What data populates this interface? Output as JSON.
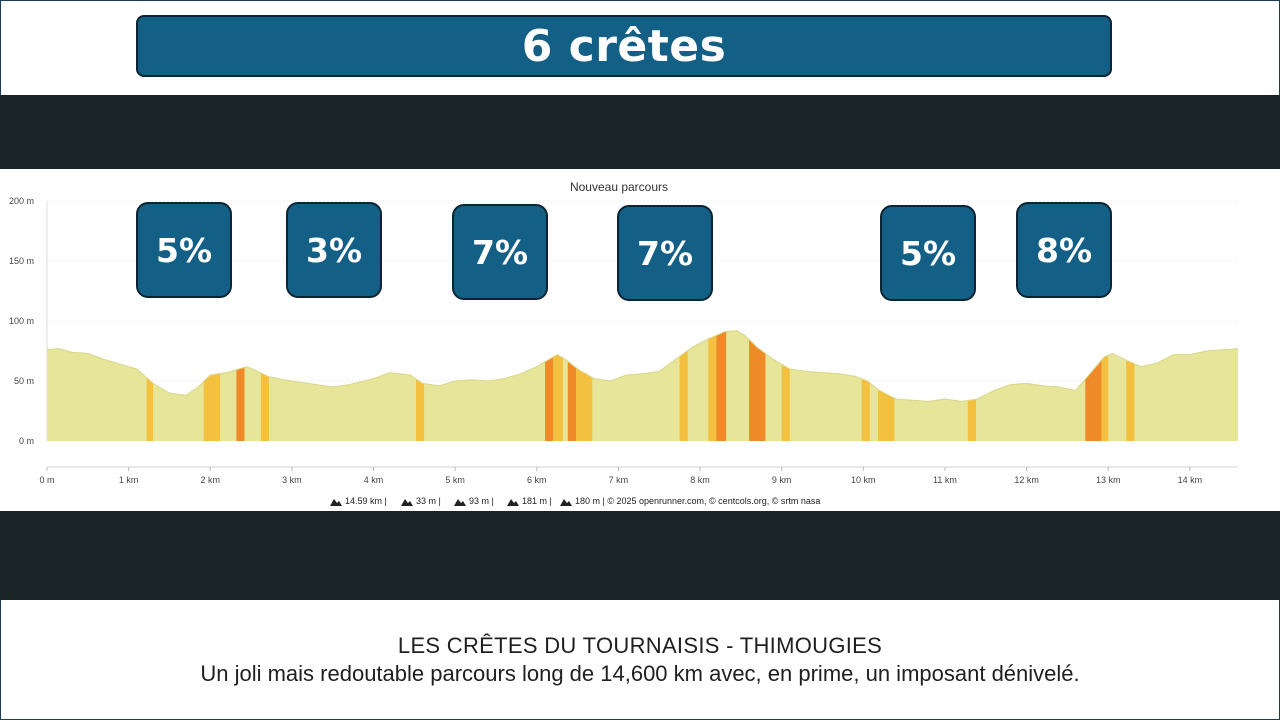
{
  "header": {
    "title": "6 crêtes"
  },
  "chart_data": {
    "type": "area",
    "title": "Nouveau parcours",
    "xlabel": "",
    "ylabel": "",
    "xlim": [
      0,
      14.59
    ],
    "ylim": [
      0,
      200
    ],
    "grid": true,
    "x_ticks": [
      "0 m",
      "1 km",
      "2 km",
      "3 km",
      "4 km",
      "5 km",
      "6 km",
      "7 km",
      "8 km",
      "9 km",
      "10 km",
      "11 km",
      "12 km",
      "13 km",
      "14 km"
    ],
    "y_ticks": [
      "0 m",
      "50 m",
      "100 m",
      "150 m",
      "200 m"
    ],
    "series": [
      {
        "x": [
          0,
          0.15,
          0.3,
          0.5,
          0.7,
          0.9,
          1.1,
          1.3,
          1.5,
          1.7,
          1.85,
          2.0,
          2.2,
          2.35,
          2.45,
          2.55,
          2.7,
          2.9,
          3.2,
          3.5,
          3.7,
          4.0,
          4.2,
          4.45,
          4.6,
          4.8,
          5.0,
          5.2,
          5.4,
          5.6,
          5.8,
          6.0,
          6.15,
          6.25,
          6.35,
          6.5,
          6.7,
          6.9,
          7.1,
          7.3,
          7.5,
          7.7,
          7.9,
          8.1,
          8.3,
          8.45,
          8.55,
          8.7,
          8.9,
          9.1,
          9.3,
          9.5,
          9.7,
          9.9,
          10.05,
          10.2,
          10.4,
          10.6,
          10.8,
          11.0,
          11.2,
          11.4,
          11.6,
          11.8,
          12.0,
          12.2,
          12.4,
          12.6,
          12.8,
          12.95,
          13.05,
          13.2,
          13.4,
          13.6,
          13.8,
          14.0,
          14.2,
          14.4,
          14.59
        ],
        "y": [
          76,
          77,
          74,
          73,
          68,
          64,
          60,
          48,
          40,
          38,
          45,
          55,
          57,
          60,
          62,
          59,
          54,
          51,
          48,
          45,
          47,
          52,
          57,
          55,
          48,
          46,
          50,
          51,
          50,
          52,
          56,
          62,
          68,
          72,
          68,
          60,
          52,
          50,
          55,
          56,
          58,
          68,
          78,
          85,
          91,
          92,
          88,
          78,
          68,
          60,
          58,
          57,
          56,
          54,
          50,
          42,
          35,
          34,
          33,
          35,
          33,
          35,
          42,
          47,
          48,
          46,
          45,
          42,
          58,
          70,
          73,
          68,
          62,
          65,
          72,
          72,
          75,
          76,
          77
        ]
      }
    ],
    "climbs": [
      {
        "label": "5%"
      },
      {
        "label": "3%"
      },
      {
        "label": "7%"
      },
      {
        "label": "7%"
      },
      {
        "label": "5%"
      },
      {
        "label": "8%"
      }
    ],
    "stats": {
      "distance": "14.59 km",
      "min": "33 m",
      "max": "93 m",
      "gain": "181 m",
      "loss": "180 m",
      "credits": "© 2025 openrunner.com, © centcols.org, © srtm nasa"
    }
  },
  "footer": {
    "line1": "LES CRÊTES DU TOURNAISIS - THIMOUGIES",
    "line2": "Un joli mais redoutable parcours long de 14,600 km avec, en prime, un imposant dénivelé."
  },
  "colors": {
    "accent": "#135f85",
    "band": "#1a2326",
    "profile": "#e6e59a",
    "climb_light": "#f3c040",
    "climb_dark": "#ee8a28"
  }
}
